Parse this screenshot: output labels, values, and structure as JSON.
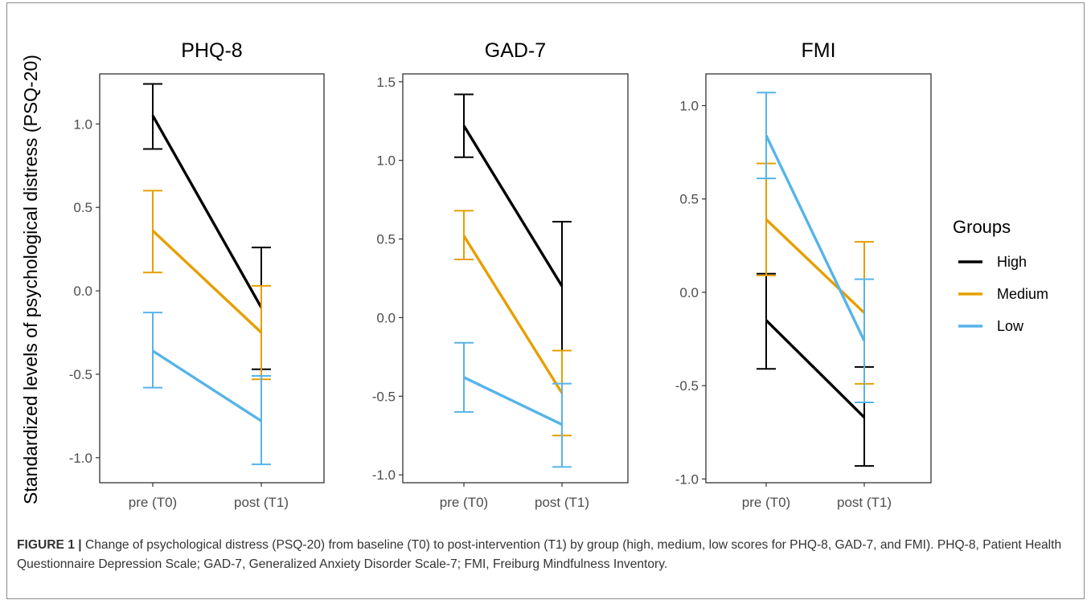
{
  "chart_data": {
    "type": "line",
    "ylabel": "Standardized levels of psychological distress (PSQ-20)",
    "categories": [
      "pre (T0)",
      "post (T1)"
    ],
    "legend": {
      "title": "Groups",
      "placement": "right",
      "items": [
        {
          "name": "High",
          "color": "#000000"
        },
        {
          "name": "Medium",
          "color": "#E69F00"
        },
        {
          "name": "Low",
          "color": "#56B4E9"
        }
      ]
    },
    "panels": [
      {
        "title": "PHQ-8",
        "ylim": [
          -1.15,
          1.3
        ],
        "yticks": [
          -1.0,
          -0.5,
          0.0,
          0.5,
          1.0
        ],
        "yticklabels": [
          "-1.0",
          "-0.5",
          "0.0",
          "0.5",
          "1.0"
        ],
        "series": [
          {
            "name": "High",
            "color": "#000000",
            "values": [
              1.05,
              -0.1
            ],
            "lower": [
              0.85,
              -0.47
            ],
            "upper": [
              1.24,
              0.26
            ]
          },
          {
            "name": "Medium",
            "color": "#E69F00",
            "values": [
              0.36,
              -0.25
            ],
            "lower": [
              0.11,
              -0.53
            ],
            "upper": [
              0.6,
              0.03
            ]
          },
          {
            "name": "Low",
            "color": "#56B4E9",
            "values": [
              -0.36,
              -0.78
            ],
            "lower": [
              -0.58,
              -1.04
            ],
            "upper": [
              -0.13,
              -0.51
            ]
          }
        ]
      },
      {
        "title": "GAD-7",
        "ylim": [
          -1.05,
          1.55
        ],
        "yticks": [
          -1.0,
          -0.5,
          0.0,
          0.5,
          1.0,
          1.5
        ],
        "yticklabels": [
          "-1.0",
          "-0.5",
          "0.0",
          "0.5",
          "1.0",
          "1.5"
        ],
        "series": [
          {
            "name": "High",
            "color": "#000000",
            "values": [
              1.22,
              0.2
            ],
            "lower": [
              1.02,
              -0.21
            ],
            "upper": [
              1.42,
              0.61
            ]
          },
          {
            "name": "Medium",
            "color": "#E69F00",
            "values": [
              0.52,
              -0.48
            ],
            "lower": [
              0.37,
              -0.75
            ],
            "upper": [
              0.68,
              -0.21
            ]
          },
          {
            "name": "Low",
            "color": "#56B4E9",
            "values": [
              -0.38,
              -0.68
            ],
            "lower": [
              -0.6,
              -0.95
            ],
            "upper": [
              -0.16,
              -0.42
            ]
          }
        ]
      },
      {
        "title": "FMI",
        "ylim": [
          -1.02,
          1.17
        ],
        "yticks": [
          -1.0,
          -0.5,
          0.0,
          0.5,
          1.0
        ],
        "yticklabels": [
          "-1.0",
          "-0.5",
          "0.0",
          "0.5",
          "1.0"
        ],
        "series": [
          {
            "name": "High",
            "color": "#000000",
            "values": [
              -0.15,
              -0.67
            ],
            "lower": [
              -0.41,
              -0.93
            ],
            "upper": [
              0.1,
              -0.4
            ]
          },
          {
            "name": "Medium",
            "color": "#E69F00",
            "values": [
              0.39,
              -0.11
            ],
            "lower": [
              0.09,
              -0.49
            ],
            "upper": [
              0.69,
              0.27
            ]
          },
          {
            "name": "Low",
            "color": "#56B4E9",
            "values": [
              0.84,
              -0.26
            ],
            "lower": [
              0.61,
              -0.59
            ],
            "upper": [
              1.07,
              0.07
            ]
          }
        ]
      }
    ],
    "grid": false
  },
  "caption": {
    "label": "FIGURE 1 |",
    "text": " Change of psychological distress (PSQ-20) from baseline (T0) to post-intervention (T1) by group (high, medium, low scores for PHQ-8, GAD-7, and FMI). PHQ-8, Patient Health Questionnaire Depression Scale; GAD-7, Generalized Anxiety Disorder Scale-7; FMI, Freiburg Mindfulness Inventory."
  }
}
